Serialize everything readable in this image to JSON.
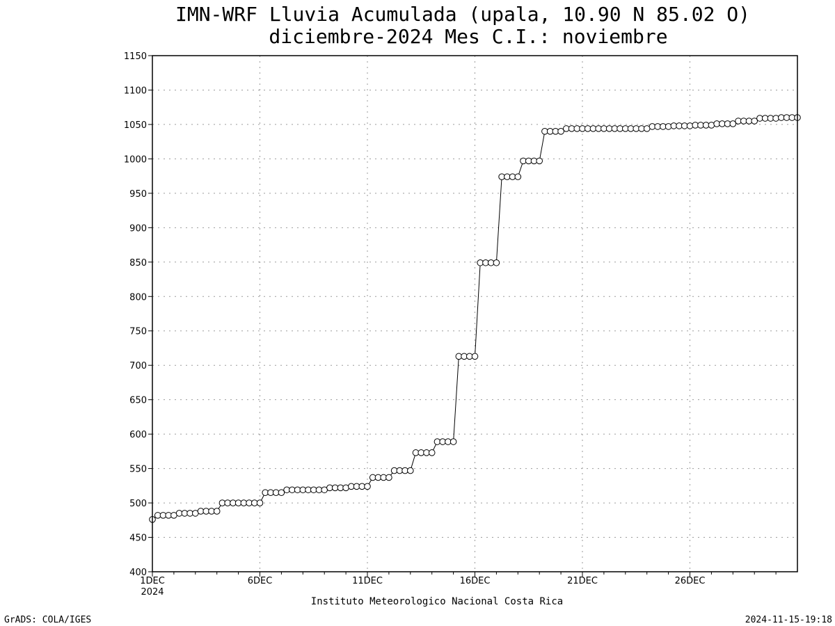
{
  "chart_data": {
    "type": "line",
    "title": "IMN-WRF  Lluvia Acumulada (upala, 10.90  N 85.02  O)",
    "subtitle": "diciembre-2024 Mes C.I.: noviembre",
    "xlabel": "Instituto Meteorologico Nacional Costa Rica",
    "ylabel": "",
    "ylim": [
      400,
      1150
    ],
    "yticks": [
      400,
      450,
      500,
      550,
      600,
      650,
      700,
      750,
      800,
      850,
      900,
      950,
      1000,
      1050,
      1100,
      1150
    ],
    "xlim": [
      1,
      31
    ],
    "xticks": [
      {
        "day": 1,
        "label": "1DEC",
        "sublabel": "2024"
      },
      {
        "day": 6,
        "label": "6DEC"
      },
      {
        "day": 11,
        "label": "11DEC"
      },
      {
        "day": 16,
        "label": "16DEC"
      },
      {
        "day": 21,
        "label": "21DEC"
      },
      {
        "day": 26,
        "label": "26DEC"
      }
    ],
    "grid": true,
    "marker": "open-circle",
    "series": [
      {
        "points_per_day": 4,
        "values": [
          476,
          482,
          482,
          482,
          482,
          485,
          485,
          485,
          485,
          488,
          488,
          488,
          488,
          500,
          500,
          500,
          500,
          500,
          500,
          500,
          500,
          515,
          515,
          515,
          515,
          519,
          519,
          519,
          519,
          519,
          519,
          519,
          519,
          522,
          522,
          522,
          522,
          524,
          524,
          524,
          524,
          537,
          537,
          537,
          537,
          547,
          547,
          547,
          547,
          573,
          573,
          573,
          573,
          589,
          589,
          589,
          589,
          713,
          713,
          713,
          713,
          849,
          849,
          849,
          849,
          974,
          974,
          974,
          974,
          997,
          997,
          997,
          997,
          1040,
          1040,
          1040,
          1040,
          1044,
          1044,
          1044,
          1044,
          1044,
          1044,
          1044,
          1044,
          1044,
          1044,
          1044,
          1044,
          1044,
          1044,
          1044,
          1044,
          1047,
          1047,
          1047,
          1047,
          1048,
          1048,
          1048,
          1048,
          1049,
          1049,
          1049,
          1049,
          1051,
          1051,
          1051,
          1051,
          1055,
          1055,
          1055,
          1055,
          1059,
          1059,
          1059,
          1059,
          1060,
          1060,
          1060,
          1060
        ]
      }
    ]
  },
  "footer": {
    "left": "GrADS: COLA/IGES",
    "right": "2024-11-15-19:18"
  }
}
